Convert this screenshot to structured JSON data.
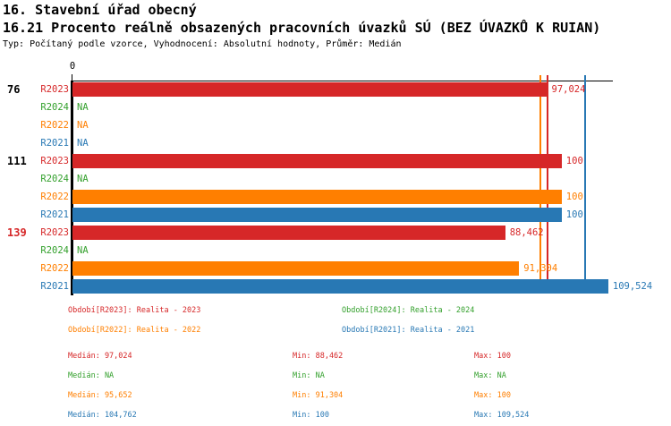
{
  "header": {
    "line1": "16. Stavební úřad obecný",
    "line2": "16.21 Procento reálně obsazených pracovních úvazků SÚ (BEZ ÚVAZKŮ K RUIAN)",
    "line3": "Typ: Počítaný podle vzorce, Vyhodnocení: Absolutní hodnoty, Průměr: Medián"
  },
  "chart_data": {
    "type": "bar",
    "orientation": "horizontal",
    "title": "16.21 Procento reálně obsazených pracovních úvazků SÚ (BEZ ÚVAZKŮ K RUIAN)",
    "xlim": [
      0,
      110.5
    ],
    "grid": false,
    "x_ticks": [
      {
        "value": 0,
        "label": "0"
      }
    ],
    "series_order": [
      "R2023",
      "R2024",
      "R2022",
      "R2021"
    ],
    "colors": {
      "R2023": "#d62728",
      "R2024": "#33a02c",
      "R2022": "#ff7f00",
      "R2021": "#2878b4",
      "highlight": "#d62728",
      "axis": "#000000"
    },
    "groups": [
      {
        "label": "76",
        "highlighted": false,
        "bars": [
          {
            "series": "R2023",
            "value": 97.024,
            "label": "97,024"
          },
          {
            "series": "R2024",
            "value": null,
            "label": "NA"
          },
          {
            "series": "R2022",
            "value": null,
            "label": "NA"
          },
          {
            "series": "R2021",
            "value": null,
            "label": "NA"
          }
        ]
      },
      {
        "label": "111",
        "highlighted": false,
        "bars": [
          {
            "series": "R2023",
            "value": 100,
            "label": "100"
          },
          {
            "series": "R2024",
            "value": null,
            "label": "NA"
          },
          {
            "series": "R2022",
            "value": 100,
            "label": "100"
          },
          {
            "series": "R2021",
            "value": 100,
            "label": "100"
          }
        ]
      },
      {
        "label": "139",
        "highlighted": true,
        "bars": [
          {
            "series": "R2023",
            "value": 88.462,
            "label": "88,462"
          },
          {
            "series": "R2024",
            "value": null,
            "label": "NA"
          },
          {
            "series": "R2022",
            "value": 91.304,
            "label": "91,304"
          },
          {
            "series": "R2021",
            "value": 109.524,
            "label": "109,524"
          }
        ]
      }
    ],
    "median_lines": [
      {
        "series": "R2022",
        "value": 95.652
      },
      {
        "series": "R2023",
        "value": 97.024
      },
      {
        "series": "R2021",
        "value": 104.762
      }
    ]
  },
  "legend": {
    "items": [
      {
        "series": "R2023",
        "text": "Období[R2023]: Realita - 2023"
      },
      {
        "series": "R2024",
        "text": "Období[R2024]: Realita - 2024"
      },
      {
        "series": "R2022",
        "text": "Období[R2022]: Realita - 2022"
      },
      {
        "series": "R2021",
        "text": "Období[R2021]: Realita - 2021"
      }
    ]
  },
  "stats": {
    "rows": [
      {
        "series": "R2023",
        "median": "Medián: 97,024",
        "min": "Min: 88,462",
        "max": "Max: 100"
      },
      {
        "series": "R2024",
        "median": "Medián: NA",
        "min": "Min: NA",
        "max": "Max: NA"
      },
      {
        "series": "R2022",
        "median": "Medián: 95,652",
        "min": "Min: 91,304",
        "max": "Max: 100"
      },
      {
        "series": "R2021",
        "median": "Medián: 104,762",
        "min": "Min: 100",
        "max": "Max: 109,524"
      }
    ]
  }
}
